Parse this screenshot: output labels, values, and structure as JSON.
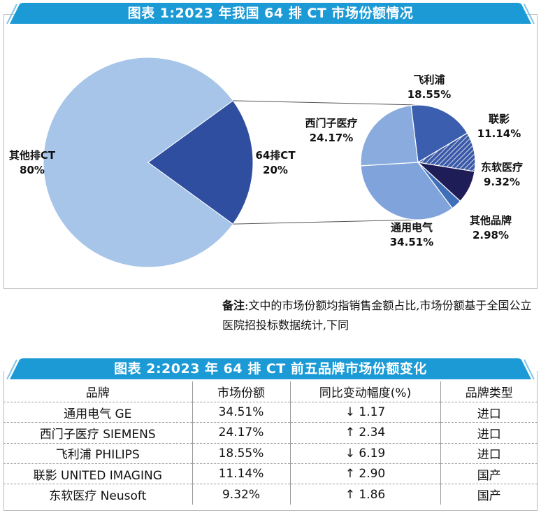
{
  "banner1": {
    "title": "图表 1:2023 年我国 64 排 CT 市场份额情况"
  },
  "banner2": {
    "title": "图表 2:2023 年 64 排 CT 前五品牌市场份额变化"
  },
  "colors": {
    "banner": "#1c9ad6",
    "light_blue": "#a7c5e8",
    "mid_blue": "#8aaedf",
    "dark_blue": "#2f4ea0",
    "navy": "#1f1d57"
  },
  "chart_data": [
    {
      "type": "pie",
      "name": "main",
      "slices": [
        {
          "label": "其他排CT",
          "value": 80,
          "value_label": "80%",
          "color": "#a7c5e8"
        },
        {
          "label": "64排CT",
          "value": 20,
          "value_label": "20%",
          "color": "#2f4ea0"
        }
      ]
    },
    {
      "type": "pie",
      "name": "breakdown_of_64排CT",
      "slices": [
        {
          "label": "飞利浦",
          "value": 18.55,
          "value_label": "18.55%",
          "color": "#3b5fae"
        },
        {
          "label": "联影",
          "value": 11.14,
          "value_label": "11.14%",
          "color": "#3a59a8",
          "pattern": "hatch"
        },
        {
          "label": "东软医疗",
          "value": 9.32,
          "value_label": "9.32%",
          "color": "#1f1d57"
        },
        {
          "label": "其他品牌",
          "value": 2.98,
          "value_label": "2.98%",
          "color": "#3f6fb8"
        },
        {
          "label": "通用电气",
          "value": 34.51,
          "value_label": "34.51%",
          "color": "#7fa3da"
        },
        {
          "label": "西门子医疗",
          "value": 24.17,
          "value_label": "24.17%",
          "color": "#89abdd"
        }
      ]
    }
  ],
  "note": {
    "label": "备注",
    "text": ":文中的市场份额均指销售金额占比,市场份额基于全国公立医院招投标数据统计,下同"
  },
  "table": {
    "headers": [
      "品牌",
      "市场份额",
      "同比变动幅度(%)",
      "品牌类型"
    ],
    "rows": [
      {
        "brand": "通用电气  GE",
        "share": "34.51%",
        "change": "↓ 1.17",
        "type": "进口"
      },
      {
        "brand": "西门子医疗  SIEMENS",
        "share": "24.17%",
        "change": "↑ 2.34",
        "type": "进口"
      },
      {
        "brand": "飞利浦  PHILIPS",
        "share": "18.55%",
        "change": "↓ 6.19",
        "type": "进口"
      },
      {
        "brand": "联影  UNITED  IMAGING",
        "share": "11.14%",
        "change": "↑ 2.90",
        "type": "国产"
      },
      {
        "brand": "东软医疗  Neusoft",
        "share": "9.32%",
        "change": "↑ 1.86",
        "type": "国产"
      }
    ]
  }
}
